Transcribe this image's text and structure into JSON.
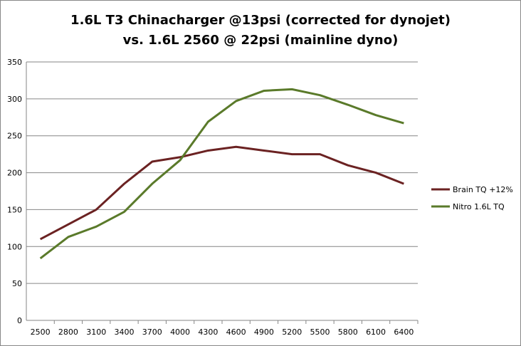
{
  "chart_data": {
    "type": "line",
    "title_line1": "1.6L T3 Chinacharger @13psi (corrected for dynojet)",
    "title_line2": "vs. 1.6L 2560 @ 22psi (mainline dyno)",
    "xlabel": "",
    "ylabel": "",
    "ylim": [
      0,
      350
    ],
    "yticks": [
      "0",
      "50",
      "100",
      "150",
      "200",
      "250",
      "300",
      "350"
    ],
    "categories": [
      "2500",
      "2800",
      "3100",
      "3400",
      "3700",
      "4000",
      "4300",
      "4600",
      "4900",
      "5200",
      "5500",
      "5800",
      "6100",
      "6400"
    ],
    "grid": true,
    "legend_position": "right",
    "series": [
      {
        "name": "Brain TQ +12%",
        "color": "#6b2222",
        "values": [
          110,
          130,
          150,
          185,
          215,
          221,
          230,
          235,
          230,
          225,
          225,
          210,
          200,
          185
        ]
      },
      {
        "name": "Nitro 1.6L TQ",
        "color": "#5a7a2a",
        "values": [
          84,
          113,
          127,
          147,
          185,
          217,
          269,
          297,
          311,
          313,
          305,
          292,
          278,
          267
        ]
      }
    ]
  }
}
